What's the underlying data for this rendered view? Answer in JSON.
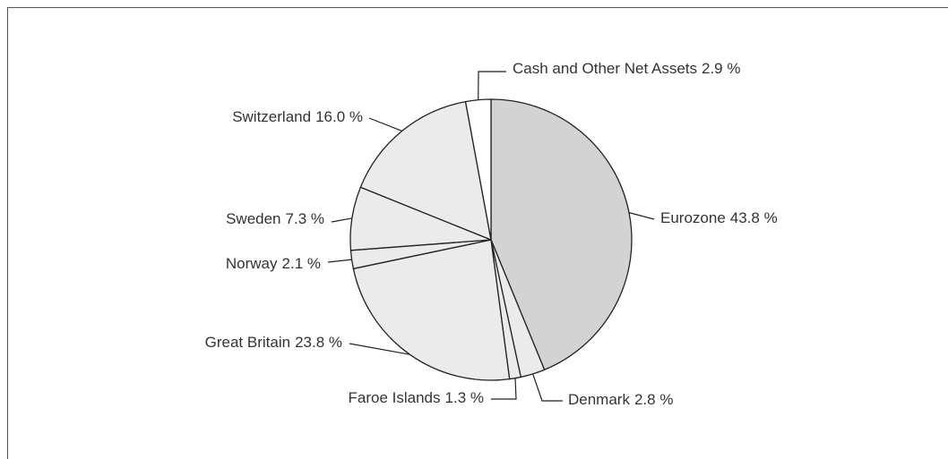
{
  "chart_data": {
    "type": "pie",
    "categories": [
      "Eurozone",
      "Denmark",
      "Faroe Islands",
      "Great Britain",
      "Norway",
      "Sweden",
      "Switzerland",
      "Cash and Other Net Assets"
    ],
    "values": [
      43.8,
      2.8,
      1.3,
      23.8,
      2.1,
      7.3,
      16.0,
      2.9
    ],
    "value_labels": [
      "43.8 %",
      "2.8 %",
      "1.3 %",
      "23.8 %",
      "2.1 %",
      "7.3 %",
      "16.0 %",
      "2.9 %"
    ],
    "colors": [
      "#d3d3d3",
      "#ebebeb",
      "#ebebeb",
      "#ebebeb",
      "#ebebeb",
      "#ebebeb",
      "#ebebeb",
      "#ffffff"
    ]
  }
}
